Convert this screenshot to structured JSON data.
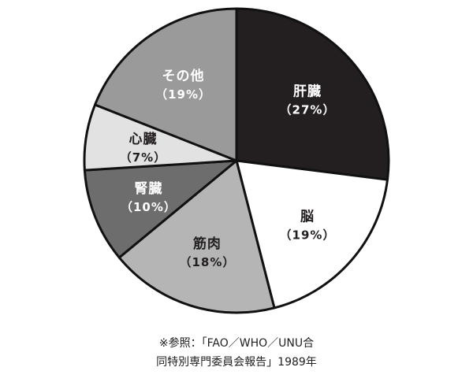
{
  "chart_data": {
    "type": "pie",
    "categories": [
      "肝臓",
      "脳",
      "筋肉",
      "腎臓",
      "心臓",
      "その他"
    ],
    "values": [
      27,
      19,
      18,
      10,
      7,
      19
    ],
    "percent_labels": [
      "（27%）",
      "（19%）",
      "（18%）",
      "（10%）",
      "（7%）",
      "（19%）"
    ],
    "colors": [
      "#231f20",
      "#ffffff",
      "#b5b5b5",
      "#6d6d6d",
      "#e2e2e2",
      "#9a9a9a"
    ],
    "label_colors": [
      "#ffffff",
      "#231f20",
      "#231f20",
      "#ffffff",
      "#231f20",
      "#ffffff"
    ],
    "start": "12 o'clock, clockwise",
    "legend": "none"
  },
  "source": {
    "line1": "※参照：「FAO／WHO／UNU合",
    "line2": "同特別専門委員会報告」1989年"
  }
}
